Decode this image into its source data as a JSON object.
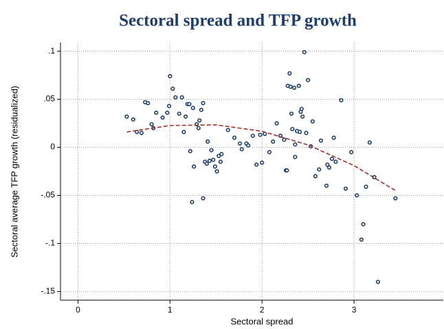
{
  "chart_data": {
    "type": "scatter",
    "title": "Sectoral spread and TFP growth",
    "x_label": "Sectoral spread",
    "y_label": "Sectoral average TFP growth (residualized)",
    "xlim": [
      -0.19,
      3.97
    ],
    "ylim": [
      -0.159,
      0.109
    ],
    "xticks": [
      0,
      1,
      2,
      3
    ],
    "yticks": [
      {
        "value": 0.1,
        "label": ".1"
      },
      {
        "value": 0.05,
        "label": ".05"
      },
      0,
      {
        "value": -0.05,
        "label": "-.05"
      },
      {
        "value": -0.1,
        "label": "-.1"
      },
      {
        "value": -0.15,
        "label": "-.15"
      }
    ],
    "grid": true,
    "series": [
      {
        "type": "scatter",
        "color": "#1f3f6e",
        "x": [
          0.53,
          0.6,
          0.64,
          0.69,
          0.73,
          0.76,
          0.8,
          0.82,
          0.85,
          0.92,
          0.97,
          0.99,
          1.0,
          1.03,
          1.06,
          1.1,
          1.13,
          1.15,
          1.17,
          1.19,
          1.21,
          1.22,
          1.24,
          1.25,
          1.26,
          1.29,
          1.31,
          1.32,
          1.34,
          1.36,
          1.36,
          1.38,
          1.4,
          1.41,
          1.43,
          1.45,
          1.47,
          1.49,
          1.51,
          1.53,
          1.55,
          1.56,
          1.63,
          1.7,
          1.76,
          1.78,
          1.83,
          1.85,
          1.9,
          1.94,
          1.98,
          2.0,
          2.03,
          2.08,
          2.12,
          2.16,
          2.2,
          2.24,
          2.26,
          2.27,
          2.28,
          2.3,
          2.31,
          2.32,
          2.33,
          2.35,
          2.36,
          2.36,
          2.38,
          2.4,
          2.41,
          2.42,
          2.43,
          2.44,
          2.46,
          2.48,
          2.5,
          2.53,
          2.55,
          2.58,
          2.62,
          2.64,
          2.7,
          2.71,
          2.73,
          2.76,
          2.78,
          2.8,
          2.86,
          2.91,
          2.97,
          3.03,
          3.08,
          3.1,
          3.13,
          3.17,
          3.22,
          3.26,
          3.45
        ],
        "values": [
          0.032,
          0.029,
          0.016,
          0.015,
          0.047,
          0.046,
          0.024,
          0.02,
          0.036,
          0.031,
          0.036,
          0.043,
          0.074,
          0.061,
          0.052,
          0.035,
          0.052,
          0.016,
          0.032,
          0.045,
          0.045,
          -0.004,
          -0.057,
          0.041,
          -0.02,
          0.024,
          0.02,
          0.028,
          0.039,
          0.046,
          -0.053,
          -0.015,
          -0.017,
          0.006,
          -0.014,
          -0.003,
          -0.013,
          -0.02,
          -0.025,
          -0.009,
          -0.015,
          -0.007,
          0.018,
          0.01,
          0.004,
          -0.002,
          0.004,
          0.002,
          0.012,
          -0.018,
          0.013,
          -0.016,
          0.014,
          -0.005,
          0.006,
          0.025,
          0.012,
          0.008,
          -0.024,
          -0.024,
          0.064,
          0.077,
          0.063,
          0.035,
          0.019,
          0.062,
          0.003,
          -0.01,
          0.017,
          0.064,
          0.016,
          0.037,
          0.04,
          0.032,
          0.099,
          0.015,
          0.07,
          0.001,
          0.027,
          -0.03,
          -0.023,
          0.007,
          -0.04,
          -0.018,
          -0.021,
          -0.012,
          0.01,
          -0.015,
          0.049,
          -0.043,
          -0.005,
          -0.05,
          -0.096,
          -0.08,
          -0.041,
          0.005,
          -0.031,
          -0.14,
          -0.053
        ]
      },
      {
        "type": "line",
        "color": "#a03028",
        "dashed": true,
        "x": [
          0.53,
          1.0,
          1.5,
          2.0,
          2.5,
          3.0,
          3.45
        ],
        "values": [
          0.016,
          0.0227,
          0.0234,
          0.0167,
          0.0025,
          -0.019,
          -0.045
        ]
      }
    ]
  }
}
